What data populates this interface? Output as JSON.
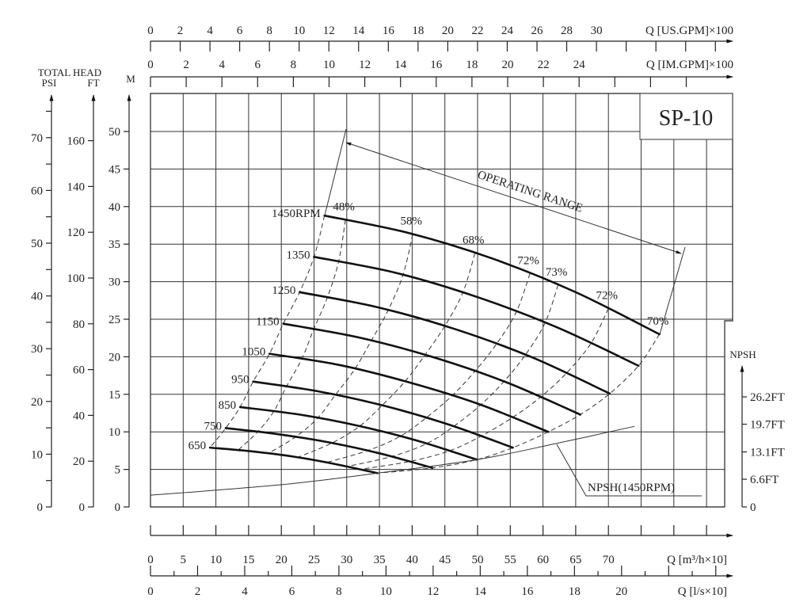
{
  "chart_data": {
    "type": "line",
    "title": "SP-10",
    "xlabel": "Q [m³/h×10]",
    "ylabel": "TOTAL HEAD",
    "xlim": [
      0,
      89
    ],
    "ylim": [
      0,
      55
    ],
    "grid": true,
    "left_axes": {
      "title": "TOTAL HEAD",
      "psi": {
        "label": "PSI",
        "ticks": [
          0,
          10,
          20,
          30,
          40,
          50,
          60,
          70
        ]
      },
      "ft": {
        "label": "FT",
        "ticks": [
          0,
          20,
          40,
          60,
          80,
          100,
          120,
          140,
          160
        ]
      },
      "m": {
        "label": "M",
        "ticks": [
          0,
          5,
          10,
          15,
          20,
          25,
          30,
          35,
          40,
          45,
          50
        ]
      }
    },
    "top_axes": {
      "us_gpm": {
        "label": "Q [US.GPM]×100",
        "ticks": [
          0,
          2,
          4,
          6,
          8,
          10,
          12,
          14,
          16,
          18,
          20,
          22,
          24,
          26,
          28,
          30
        ]
      },
      "im_gpm": {
        "label": "Q [IM.GPM]×100",
        "ticks": [
          0,
          2,
          4,
          6,
          8,
          10,
          12,
          14,
          16,
          18,
          20,
          22,
          24
        ]
      }
    },
    "bottom_axes": {
      "m3h": {
        "label": "Q [m³/h×10]",
        "ticks": [
          0,
          5,
          10,
          15,
          20,
          25,
          30,
          35,
          40,
          45,
          50,
          55,
          60,
          65,
          70
        ]
      },
      "ls": {
        "label": "Q [l/s×10]",
        "ticks": [
          0,
          2,
          4,
          6,
          8,
          10,
          12,
          14,
          16,
          18,
          20
        ]
      }
    },
    "npsh_axis": {
      "label": "NPSH",
      "ticks": [
        "0",
        "6.6FT",
        "13.1FT",
        "19.7FT",
        "26.2FT"
      ],
      "tick_values_ft": [
        0,
        6.6,
        13.1,
        19.7,
        26.2
      ]
    },
    "series": [
      {
        "name": "1450RPM",
        "q": [
          26.6,
          39.4,
          52.2,
          65.0,
          77.8
        ],
        "h": [
          38.8,
          36.5,
          33.1,
          28.6,
          23.0
        ]
      },
      {
        "name": "1350",
        "q": [
          25.0,
          37.4,
          49.8,
          62.2,
          74.6
        ],
        "h": [
          33.3,
          31.2,
          28.0,
          23.9,
          18.8
        ]
      },
      {
        "name": "1250",
        "q": [
          22.8,
          34.7,
          46.5,
          58.4,
          70.2
        ],
        "h": [
          28.6,
          26.6,
          23.7,
          19.9,
          15.1
        ]
      },
      {
        "name": "1150",
        "q": [
          20.3,
          31.7,
          43.0,
          54.4,
          65.7
        ],
        "h": [
          24.4,
          22.6,
          20.0,
          16.6,
          12.3
        ]
      },
      {
        "name": "1050",
        "q": [
          18.2,
          28.9,
          39.5,
          50.2,
          60.8
        ],
        "h": [
          20.4,
          18.9,
          16.6,
          13.7,
          10.0
        ]
      },
      {
        "name": "950",
        "q": [
          15.7,
          25.6,
          35.6,
          45.5,
          55.4
        ],
        "h": [
          16.7,
          15.4,
          13.5,
          11.0,
          7.9
        ]
      },
      {
        "name": "850",
        "q": [
          13.7,
          22.8,
          31.8,
          40.9,
          49.9
        ],
        "h": [
          13.3,
          12.3,
          10.8,
          8.8,
          6.3
        ]
      },
      {
        "name": "750",
        "q": [
          11.5,
          19.4,
          27.3,
          35.2,
          43.1
        ],
        "h": [
          10.5,
          9.7,
          8.6,
          7.1,
          5.2
        ]
      },
      {
        "name": "650",
        "q": [
          9.1,
          15.5,
          21.9,
          28.3,
          34.7
        ],
        "h": [
          7.9,
          7.4,
          6.7,
          5.7,
          4.5
        ]
      }
    ],
    "efficiency_lines": [
      {
        "label": "",
        "q_at_1450": 26.6,
        "q_at_650": 9.1
      },
      {
        "label": "48%",
        "q_at_1450": 29.8,
        "q_at_650": 13.4
      },
      {
        "label": "58%",
        "q_at_1450": 40.1,
        "q_at_650": 18.0
      },
      {
        "label": "68%",
        "q_at_1450": 49.6,
        "q_at_650": 22.5
      },
      {
        "label": "72%",
        "q_at_1450": 58.0,
        "q_at_650": 26.9
      },
      {
        "label": "73%",
        "q_at_1450": 62.3,
        "q_at_650": 30.0
      },
      {
        "label": "72%",
        "q_at_1450": 70.0,
        "q_at_650": 32.0
      },
      {
        "label": "70%",
        "q_at_1450": 77.8,
        "q_at_650": 34.7
      }
    ],
    "npsh_curve": {
      "label": "NPSH(1450RPM)",
      "q": [
        0,
        20,
        35,
        50,
        62,
        74
      ],
      "npsh_ft": [
        2.8,
        5.3,
        8.1,
        11.3,
        15.1,
        19.2
      ]
    },
    "annotations": {
      "operating_range": "OPERATING RANGE"
    }
  }
}
